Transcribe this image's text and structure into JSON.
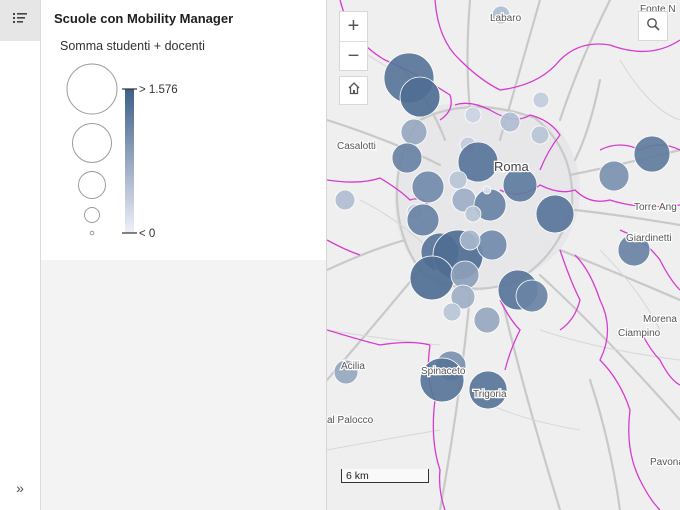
{
  "legend": {
    "title": "Scuole con Mobility Manager",
    "field": "Somma studenti + docenti",
    "max_label": "> 1.576",
    "min_label": "< 0",
    "ramp_colors": [
      "#3d5f88",
      "#eef0f8"
    ]
  },
  "map": {
    "place_labels": [
      "Labaro",
      "Fonte N",
      "Casalotti",
      "Roma",
      "Torre Ang",
      "Giardinetti",
      "Morena",
      "Ciampino",
      "Acilia",
      "Spinaceto",
      "Trigoria",
      "al Palocco",
      "Pavona"
    ],
    "scale_label": "6 km",
    "symbol_color": "#3f618a",
    "boundary_color": "#d63ccf"
  },
  "widgets": {
    "legend_icon": "legend-list-icon",
    "expand_icon": "double-chevron-right-icon",
    "zoom_in": "+",
    "zoom_out": "−",
    "home_icon": "home-icon",
    "search_icon": "search-icon"
  }
}
